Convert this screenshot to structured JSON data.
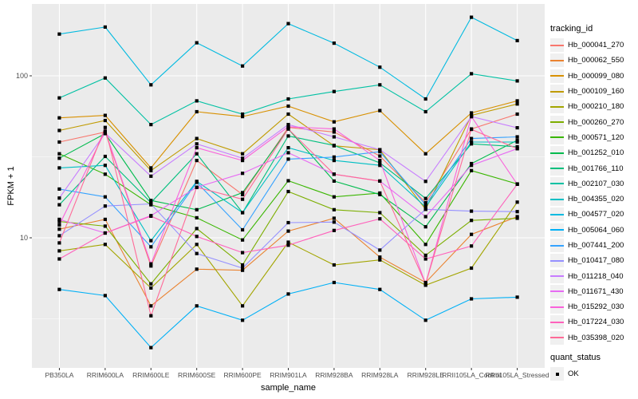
{
  "chart": {
    "ylabel": "FPKM + 1",
    "xlabel": "sample_name",
    "legend_title": "tracking_id",
    "quant_title": "quant_status",
    "quant_ok_label": "OK"
  },
  "colors": {
    "panel_bg": "#EBEBEB",
    "grid_major": "#FFFFFF",
    "grid_minor": "#FFFFFF",
    "tick_mark": "#333333",
    "tick_text": "#4D4D4D",
    "point": "#000000",
    "legend_key_bg": "#F0F0F0"
  },
  "chart_data": {
    "type": "line",
    "title": "",
    "xlabel": "sample_name",
    "ylabel": "FPKM + 1",
    "y_scale": "log10",
    "y_ticks": [
      10,
      100
    ],
    "ylim": [
      1.57,
      277
    ],
    "grid": true,
    "legend_position": "right",
    "point_shape": "filled-black-square",
    "quant_status": "OK",
    "categories": [
      "PB350LA",
      "RRIM600LA",
      "RRIM600LE",
      "RRIM600SE",
      "RRIM600PE",
      "RRIM901LA",
      "RRIM928BA",
      "RRIM928LA",
      "RRIM928LE",
      "RRII105LA_Control",
      "RRII105LA_Stressed"
    ],
    "series": [
      {
        "name": "Hb_000041_270",
        "color": "#F8766D",
        "values": [
          39,
          45,
          6.7,
          30,
          18.5,
          48,
          45,
          32,
          16.5,
          47,
          58
        ]
      },
      {
        "name": "Hb_000062_550",
        "color": "#EA8331",
        "values": [
          11.3,
          13,
          3.8,
          6.4,
          6.3,
          11,
          13.2,
          7.6,
          5.3,
          10.5,
          13.5
        ]
      },
      {
        "name": "Hb_000099_080",
        "color": "#D89000",
        "values": [
          55,
          57,
          27,
          60,
          56,
          65,
          52,
          61,
          33,
          59,
          70
        ]
      },
      {
        "name": "Hb_000109_160",
        "color": "#C09B00",
        "values": [
          46,
          53,
          26,
          41,
          33,
          58,
          37,
          35,
          15,
          57,
          67
        ]
      },
      {
        "name": "Hb_000210_180",
        "color": "#A3A500",
        "values": [
          8.3,
          9.1,
          4.9,
          9.1,
          3.8,
          9.4,
          6.8,
          7.3,
          5.1,
          6.5,
          16.6
        ]
      },
      {
        "name": "Hb_000260_270",
        "color": "#7CAE00",
        "values": [
          12.6,
          11.8,
          5.2,
          11.4,
          6.8,
          19.3,
          14.9,
          14.3,
          7.8,
          12.8,
          13.2
        ]
      },
      {
        "name": "Hb_000571_120",
        "color": "#39B600",
        "values": [
          33,
          24.7,
          16,
          13.3,
          9.7,
          22.5,
          17.9,
          18.9,
          9.1,
          26,
          21.5
        ]
      },
      {
        "name": "Hb_001252_010",
        "color": "#00BB4E",
        "values": [
          31,
          44,
          17,
          14.9,
          19,
          47,
          22.4,
          18.5,
          11.7,
          28.7,
          40
        ]
      },
      {
        "name": "Hb_001766_110",
        "color": "#00BF7D",
        "values": [
          16,
          31.8,
          16.5,
          33,
          14.3,
          42.5,
          37.2,
          29,
          17.5,
          38,
          36.5
        ]
      },
      {
        "name": "Hb_002107_030",
        "color": "#00C1A3",
        "values": [
          73,
          97,
          50,
          70,
          58,
          72,
          80,
          88,
          60,
          103,
          93
        ]
      },
      {
        "name": "Hb_004355_020",
        "color": "#00BFC4",
        "values": [
          27,
          28,
          9.6,
          22.3,
          14.3,
          36,
          30,
          28,
          15.5,
          39,
          39
        ]
      },
      {
        "name": "Hb_004577_020",
        "color": "#00BAE0",
        "values": [
          181,
          200,
          88,
          160,
          115,
          210,
          159,
          113,
          72,
          230,
          165
        ]
      },
      {
        "name": "Hb_005064_060",
        "color": "#00B0F6",
        "values": [
          4.8,
          4.4,
          2.1,
          3.8,
          3.1,
          4.5,
          5.3,
          4.8,
          3.1,
          4.2,
          4.3
        ]
      },
      {
        "name": "Hb_007441_200",
        "color": "#35A2FF",
        "values": [
          20,
          17.9,
          8.8,
          22,
          11.2,
          30.6,
          31.5,
          34,
          16,
          41,
          42
        ]
      },
      {
        "name": "Hb_010417_080",
        "color": "#9590FF",
        "values": [
          10.3,
          15.7,
          16.2,
          8,
          6.5,
          12.4,
          12.5,
          8.4,
          15,
          14.6,
          14.5
        ]
      },
      {
        "name": "Hb_011218_040",
        "color": "#C77CFF",
        "values": [
          17.6,
          44.3,
          24,
          38,
          31,
          50,
          42,
          35,
          22.3,
          56,
          47.8
        ]
      },
      {
        "name": "Hb_011671_430",
        "color": "#E76BF3",
        "values": [
          13,
          10.7,
          13.7,
          20.5,
          25,
          33.5,
          24.7,
          22.4,
          13.5,
          28,
          35.5
        ]
      },
      {
        "name": "Hb_015292_030",
        "color": "#FA62DB",
        "values": [
          12,
          45.5,
          6.9,
          36,
          30,
          48.5,
          47,
          30,
          5.2,
          56,
          21.4
        ]
      },
      {
        "name": "Hb_017224_030",
        "color": "#FF62BC",
        "values": [
          7.4,
          10.7,
          13.6,
          10.2,
          8.1,
          9,
          11.1,
          13.1,
          7.4,
          8.9,
          21.4
        ]
      },
      {
        "name": "Hb_035398_020",
        "color": "#FF6A98",
        "values": [
          9.3,
          48,
          3.3,
          20.5,
          17.3,
          47,
          24.7,
          22.4,
          5.2,
          46.7,
          35.5
        ]
      }
    ]
  }
}
